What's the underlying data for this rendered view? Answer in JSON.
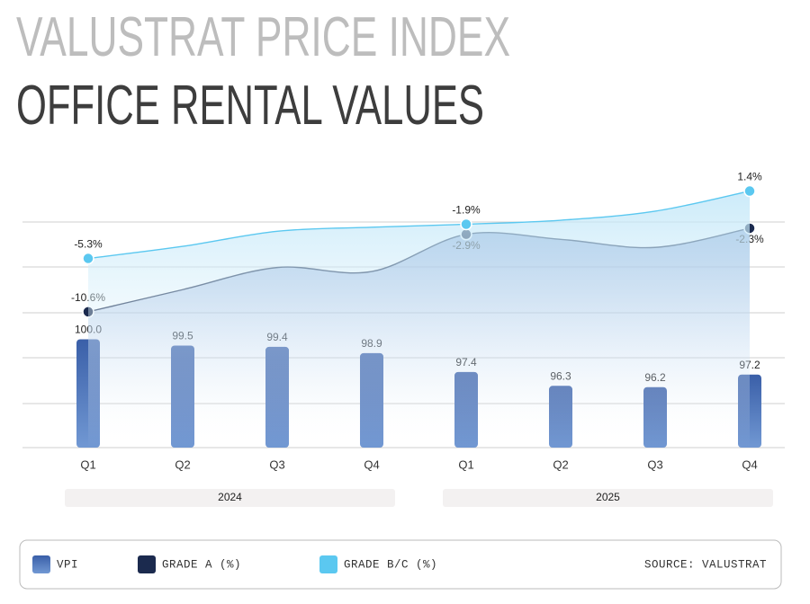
{
  "chart_data": {
    "type": "bar-line",
    "title": "VALUSTRAT PRICE INDEX",
    "subtitle": "OFFICE RENTAL VALUES",
    "source": "SOURCE: VALUSTRAT",
    "categories": [
      "Q1",
      "Q2",
      "Q3",
      "Q4",
      "Q1",
      "Q2",
      "Q3",
      "Q4"
    ],
    "groups": [
      "2024",
      "2025"
    ],
    "ylim": [
      91.4,
      112.8
    ],
    "y2lim": [
      -24.1,
      2.7
    ],
    "series": [
      {
        "name": "VPI",
        "type": "bar",
        "color": "#4a6fb5",
        "values": [
          100.0,
          99.5,
          99.4,
          98.9,
          97.4,
          96.3,
          96.2,
          97.2
        ],
        "value_labels": [
          "100.0",
          "99.5",
          "99.4",
          "98.9",
          "97.4",
          "96.3",
          "96.2",
          "97.2"
        ]
      },
      {
        "name": "GRADE A (%)",
        "type": "line",
        "axis": "y2",
        "color": "#1b2a4e",
        "values": [
          -10.6,
          -8.4,
          -6.2,
          -6.6,
          -2.9,
          -3.4,
          -4.2,
          -2.3
        ],
        "value_labels": [
          "-10.6%",
          null,
          null,
          null,
          "-2.9%",
          null,
          null,
          "-2.3%"
        ]
      },
      {
        "name": "GRADE B/C (%)",
        "type": "line",
        "axis": "y2",
        "color": "#5bc8f0",
        "values": [
          -5.3,
          -4.1,
          -2.6,
          -2.2,
          -1.9,
          -1.5,
          -0.6,
          1.4
        ],
        "value_labels": [
          "-5.3%",
          null,
          null,
          null,
          "-1.9%",
          null,
          null,
          "1.4%"
        ]
      }
    ]
  }
}
